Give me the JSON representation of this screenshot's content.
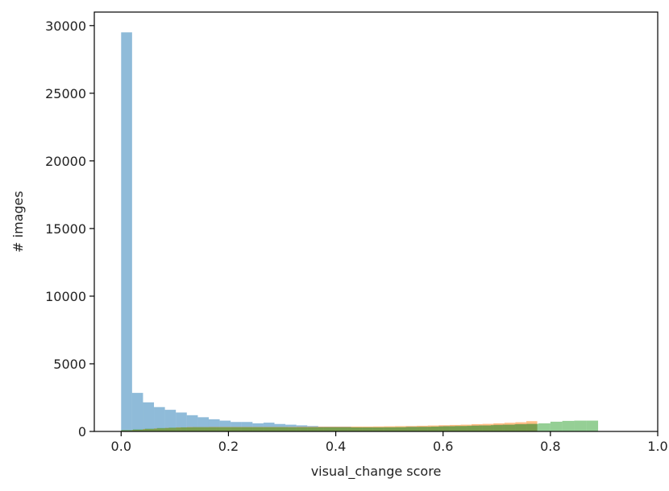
{
  "chart_data": {
    "type": "bar",
    "subtype": "overlaid-histogram",
    "title": "",
    "xlabel": "visual_change score",
    "ylabel": "# images",
    "xlim": [
      -0.05,
      1.0
    ],
    "ylim": [
      0,
      31000
    ],
    "xticks": [
      0.0,
      0.2,
      0.4,
      0.6,
      0.8,
      1.0
    ],
    "xtick_labels": [
      "0.0",
      "0.2",
      "0.4",
      "0.6",
      "0.8",
      "1.0"
    ],
    "yticks": [
      0,
      5000,
      10000,
      15000,
      20000,
      25000,
      30000
    ],
    "ytick_labels": [
      "0",
      "5000",
      "10000",
      "15000",
      "20000",
      "25000",
      "30000"
    ],
    "grid": false,
    "legend": "none",
    "series": [
      {
        "color": "#1f77b4",
        "opacity": 0.5,
        "bin_edges": [
          0.0,
          0.0204,
          0.0408,
          0.0612,
          0.0816,
          0.102,
          0.1224,
          0.1429,
          0.1633,
          0.1837,
          0.2041,
          0.2245,
          0.2449,
          0.2653,
          0.2857,
          0.3061,
          0.3265,
          0.3469,
          0.3673,
          0.3878,
          0.4082,
          0.4286,
          0.449,
          0.4694,
          0.4898,
          0.5102,
          0.5306,
          0.551,
          0.5714,
          0.5918,
          0.6122,
          0.6327,
          0.6531,
          0.6735,
          0.6939,
          0.7143,
          0.7347,
          0.7551,
          0.7755
        ],
        "counts": [
          29500,
          2850,
          2150,
          1800,
          1600,
          1400,
          1200,
          1050,
          900,
          800,
          700,
          700,
          600,
          650,
          550,
          500,
          450,
          400,
          350,
          350,
          350,
          300,
          300,
          300,
          300,
          300,
          350,
          350,
          350,
          400,
          400,
          400,
          450,
          450,
          500,
          500,
          550,
          550
        ]
      },
      {
        "color": "#ff7f0e",
        "opacity": 0.5,
        "bin_edges": [
          0.0,
          0.0204,
          0.0408,
          0.0612,
          0.0816,
          0.102,
          0.1224,
          0.1429,
          0.1633,
          0.1837,
          0.2041,
          0.2245,
          0.2449,
          0.2653,
          0.2857,
          0.3061,
          0.3265,
          0.3469,
          0.3673,
          0.3878,
          0.4082,
          0.4286,
          0.449,
          0.4694,
          0.4898,
          0.5102,
          0.5306,
          0.551,
          0.5714,
          0.5918,
          0.6122,
          0.6327,
          0.6531,
          0.6735,
          0.6939,
          0.7143,
          0.7347,
          0.7551,
          0.7755
        ],
        "counts": [
          80,
          120,
          180,
          220,
          260,
          300,
          320,
          320,
          330,
          330,
          330,
          330,
          330,
          330,
          330,
          330,
          340,
          340,
          350,
          350,
          350,
          360,
          360,
          370,
          380,
          390,
          400,
          420,
          440,
          460,
          480,
          500,
          540,
          560,
          600,
          640,
          680,
          760
        ]
      },
      {
        "color": "#2ca02c",
        "opacity": 0.5,
        "bin_edges": [
          0.0,
          0.0222,
          0.0444,
          0.0667,
          0.0889,
          0.1111,
          0.1333,
          0.1556,
          0.1778,
          0.2,
          0.2222,
          0.2444,
          0.2667,
          0.2889,
          0.3111,
          0.3333,
          0.3556,
          0.3778,
          0.4,
          0.4222,
          0.4444,
          0.4667,
          0.4889,
          0.5111,
          0.5333,
          0.5556,
          0.5778,
          0.6,
          0.6222,
          0.6444,
          0.6667,
          0.6889,
          0.7111,
          0.7333,
          0.7556,
          0.7778,
          0.8,
          0.8222,
          0.8444,
          0.8667,
          0.8889
        ],
        "counts": [
          100,
          150,
          200,
          250,
          280,
          300,
          310,
          310,
          310,
          310,
          310,
          310,
          310,
          310,
          300,
          300,
          300,
          300,
          300,
          300,
          300,
          300,
          310,
          320,
          330,
          340,
          360,
          380,
          400,
          420,
          440,
          470,
          500,
          530,
          560,
          600,
          720,
          780,
          800,
          800
        ]
      }
    ]
  }
}
